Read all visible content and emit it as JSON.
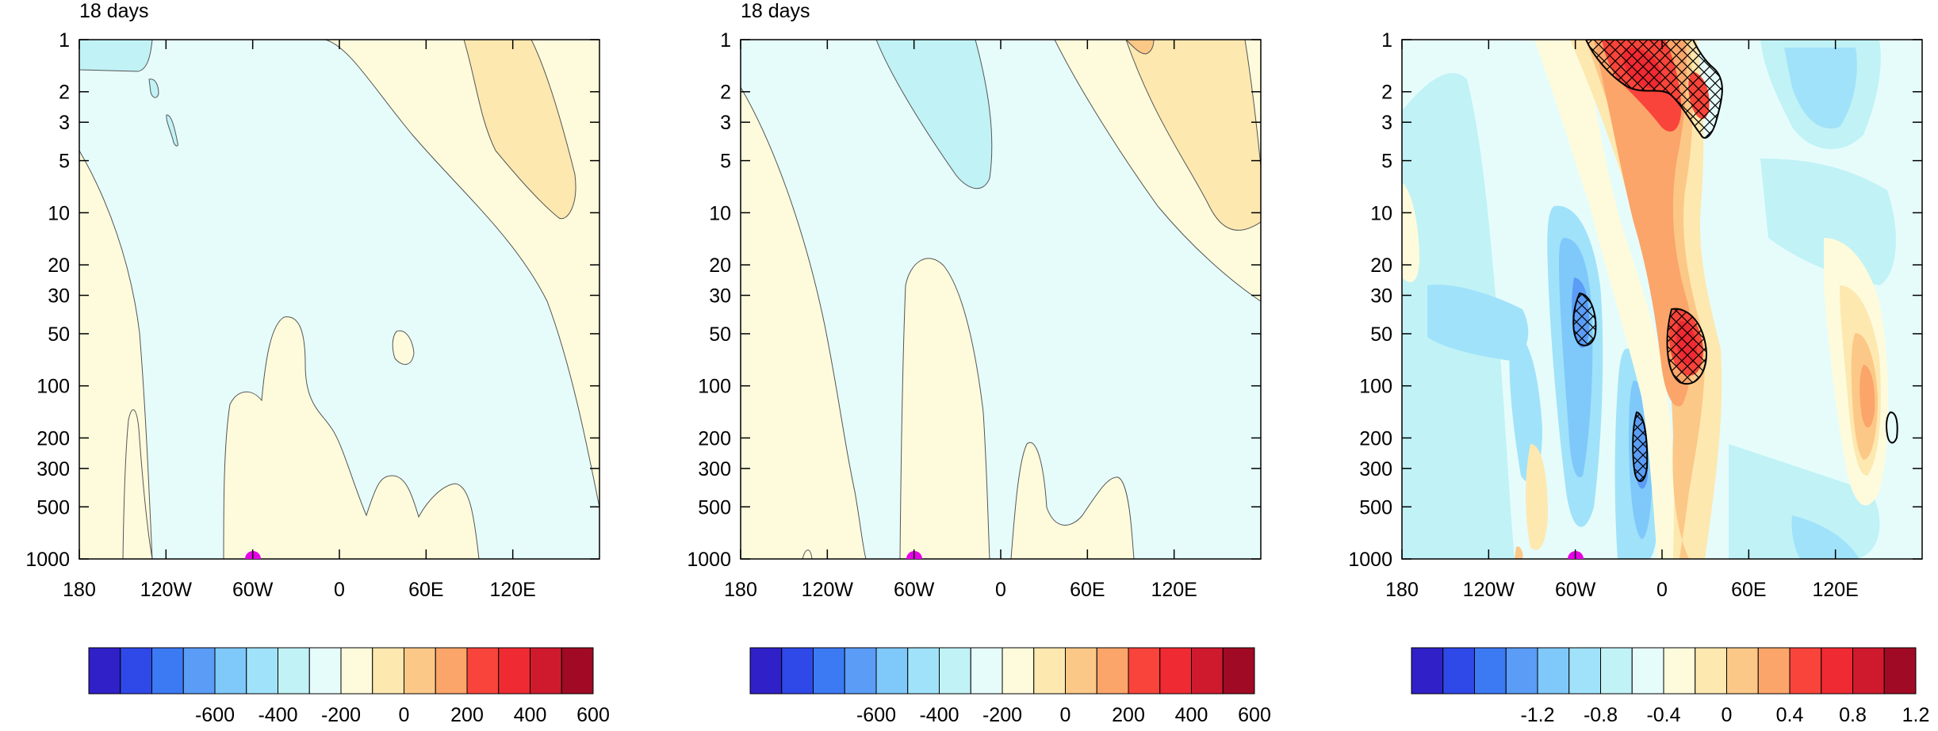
{
  "figure": {
    "panels": [
      {
        "title": "18 days",
        "chart_data": {
          "type": "heatmap",
          "x_ticks": [
            "180",
            "120W",
            "60W",
            "0",
            "60E",
            "120E"
          ],
          "y_ticks": [
            "1",
            "2",
            "3",
            "5",
            "10",
            "20",
            "30",
            "50",
            "100",
            "200",
            "300",
            "500",
            "1000"
          ],
          "y_scale": "log",
          "y_reversed": true,
          "xlim": [
            -180,
            180
          ],
          "ylim": [
            1,
            1000
          ],
          "marker": {
            "lon": -60,
            "pressure": 1000,
            "color": "#e600e6"
          },
          "colorbar": {
            "colors": [
              "#2f20c8",
              "#2f48e8",
              "#3c7af4",
              "#5a9cf6",
              "#7fc8fa",
              "#a0e2fa",
              "#c0f2f6",
              "#e6fcfb",
              "#fdfbdc",
              "#fde8b0",
              "#fcc887",
              "#fba56a",
              "#f8443a",
              "#ef2a32",
              "#cf1a2e",
              "#a00a24"
            ],
            "labels": [
              "-600",
              "-400",
              "-200",
              "0",
              "200",
              "400",
              "600"
            ]
          }
        }
      },
      {
        "title": "18 days",
        "chart_data": {
          "type": "heatmap",
          "x_ticks": [
            "180",
            "120W",
            "60W",
            "0",
            "60E",
            "120E"
          ],
          "y_ticks": [
            "1",
            "2",
            "3",
            "5",
            "10",
            "20",
            "30",
            "50",
            "100",
            "200",
            "300",
            "500",
            "1000"
          ],
          "y_scale": "log",
          "y_reversed": true,
          "xlim": [
            -180,
            180
          ],
          "ylim": [
            1,
            1000
          ],
          "marker": {
            "lon": -60,
            "pressure": 1000,
            "color": "#e600e6"
          },
          "colorbar": {
            "colors": [
              "#2f20c8",
              "#2f48e8",
              "#3c7af4",
              "#5a9cf6",
              "#7fc8fa",
              "#a0e2fa",
              "#c0f2f6",
              "#e6fcfb",
              "#fdfbdc",
              "#fde8b0",
              "#fcc887",
              "#fba56a",
              "#f8443a",
              "#ef2a32",
              "#cf1a2e",
              "#a00a24"
            ],
            "labels": [
              "-600",
              "-400",
              "-200",
              "0",
              "200",
              "400",
              "600"
            ]
          }
        }
      },
      {
        "title": "",
        "chart_data": {
          "type": "heatmap",
          "x_ticks": [
            "180",
            "120W",
            "60W",
            "0",
            "60E",
            "120E"
          ],
          "y_ticks": [
            "1",
            "2",
            "3",
            "5",
            "10",
            "20",
            "30",
            "50",
            "100",
            "200",
            "300",
            "500",
            "1000"
          ],
          "y_scale": "log",
          "y_reversed": true,
          "xlim": [
            -180,
            180
          ],
          "ylim": [
            1,
            1000
          ],
          "marker": {
            "lon": -60,
            "pressure": 1000,
            "color": "#e600e6"
          },
          "colorbar": {
            "colors": [
              "#2f20c8",
              "#2f48e8",
              "#3c7af4",
              "#5a9cf6",
              "#7fc8fa",
              "#a0e2fa",
              "#c0f2f6",
              "#e6fcfb",
              "#fdfbdc",
              "#fde8b0",
              "#fcc887",
              "#fba56a",
              "#f8443a",
              "#ef2a32",
              "#cf1a2e",
              "#a00a24"
            ],
            "labels": [
              "-1.2",
              "-0.8",
              "-0.4",
              "0",
              "0.4",
              "0.8",
              "1.2"
            ]
          }
        }
      }
    ]
  }
}
